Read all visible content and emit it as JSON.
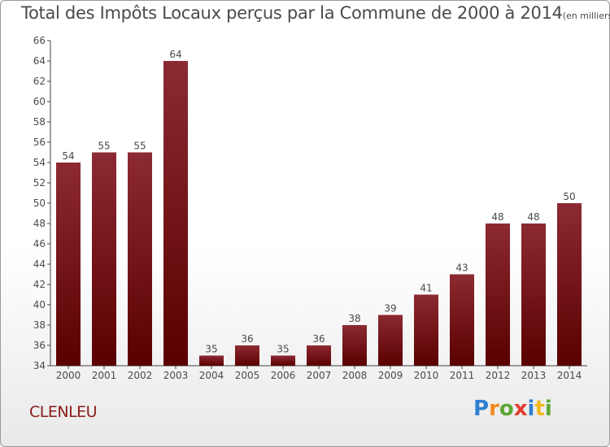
{
  "title": {
    "main": "Total des Impôts Locaux perçus par la Commune de 2000 à 2014",
    "unit": "(en milliers d'€)"
  },
  "commune": "CLENLEU",
  "logo": {
    "letters": [
      "P",
      "r",
      "o",
      "x",
      "i",
      "t",
      "i"
    ],
    "colors": [
      "#2e7fd0",
      "#f08a1c",
      "#5aa832",
      "#e23b2e",
      "#2e7fd0",
      "#f0b81c",
      "#5aa832"
    ]
  },
  "colors": {
    "bar_top": "#8c2a32",
    "bar_bottom": "#5a0000",
    "text": "#4a4a4a",
    "commune": "#8b1a1a"
  },
  "chart_data": {
    "type": "bar",
    "categories": [
      "2000",
      "2001",
      "2002",
      "2003",
      "2004",
      "2005",
      "2006",
      "2007",
      "2008",
      "2009",
      "2010",
      "2011",
      "2012",
      "2013",
      "2014"
    ],
    "values": [
      54,
      55,
      55,
      64,
      35,
      36,
      35,
      36,
      38,
      39,
      41,
      43,
      48,
      48,
      50
    ],
    "ylim": [
      34,
      66
    ],
    "yticks": [
      34,
      36,
      38,
      40,
      42,
      44,
      46,
      48,
      50,
      52,
      54,
      56,
      58,
      60,
      62,
      64,
      66
    ],
    "grid": false,
    "title": "Total des Impôts Locaux perçus par la Commune de 2000 à 2014",
    "xlabel": "",
    "ylabel": ""
  }
}
